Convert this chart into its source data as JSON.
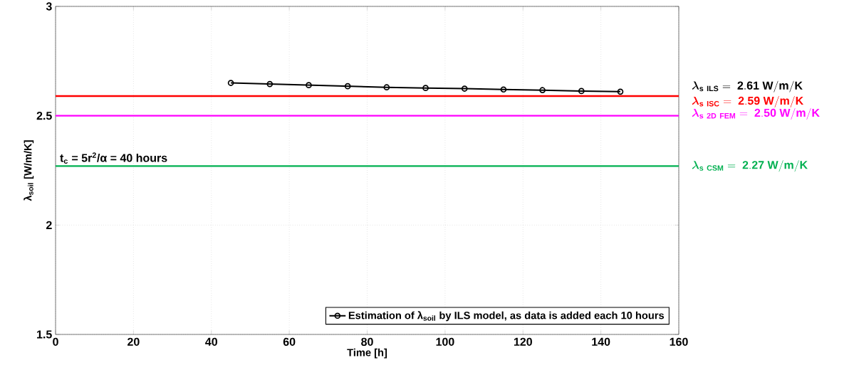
{
  "chart_data": {
    "type": "line",
    "xlabel": "Time [h]",
    "ylabel": "λ$_{soil}$ [W/m/K]",
    "x": [
      45,
      55,
      65,
      75,
      85,
      95,
      105,
      115,
      125,
      135,
      145
    ],
    "series": [
      {
        "name": "Estimation of λ$_{soil}$ by ILS model, as data is added each 10 hours",
        "color": "#000000",
        "values": [
          2.65,
          2.645,
          2.64,
          2.635,
          2.63,
          2.627,
          2.624,
          2.62,
          2.617,
          2.613,
          2.61
        ]
      }
    ],
    "xlim": [
      0,
      160
    ],
    "ylim": [
      1.5,
      3
    ],
    "xticks": [
      0,
      20,
      40,
      60,
      80,
      100,
      120,
      140,
      160
    ],
    "yticks": [
      1.5,
      2,
      2.5,
      3
    ],
    "ref_lines": [
      {
        "axis": "y",
        "value": 2.59,
        "label": "\\boldsymbol{\\lambda}_{\\mathbf{s\\ ISC}}\\mathbf{\\ =\\ 2.59\\ W/m/K}",
        "color": "#ff0000"
      },
      {
        "axis": "y",
        "value": 2.5,
        "label": "\\boldsymbol{\\lambda}_{\\mathbf{s\\ 2D\\ FEM}}\\mathbf{\\ =\\ 2.50\\ W/m/K}",
        "color": "#ff00ff"
      },
      {
        "axis": "y",
        "value": 2.27,
        "label": "\\boldsymbol{\\lambda}_{\\mathbf{s\\ CSM}}\\mathbf{\\ =\\ 2.27\\ W/m/K}",
        "color": "#00b050"
      }
    ],
    "annotations": [
      "\\boldsymbol{\\lambda}_{\\mathbf{s\\ ILS}}\\mathbf{\\ =\\ 2.61\\ W/m/K}",
      "t$_{c}$ = 5r$^{2}$/α = 40 hours"
    ],
    "grid": true,
    "legend": "bottom right",
    "marker": "circle",
    "line_style": "solid"
  }
}
